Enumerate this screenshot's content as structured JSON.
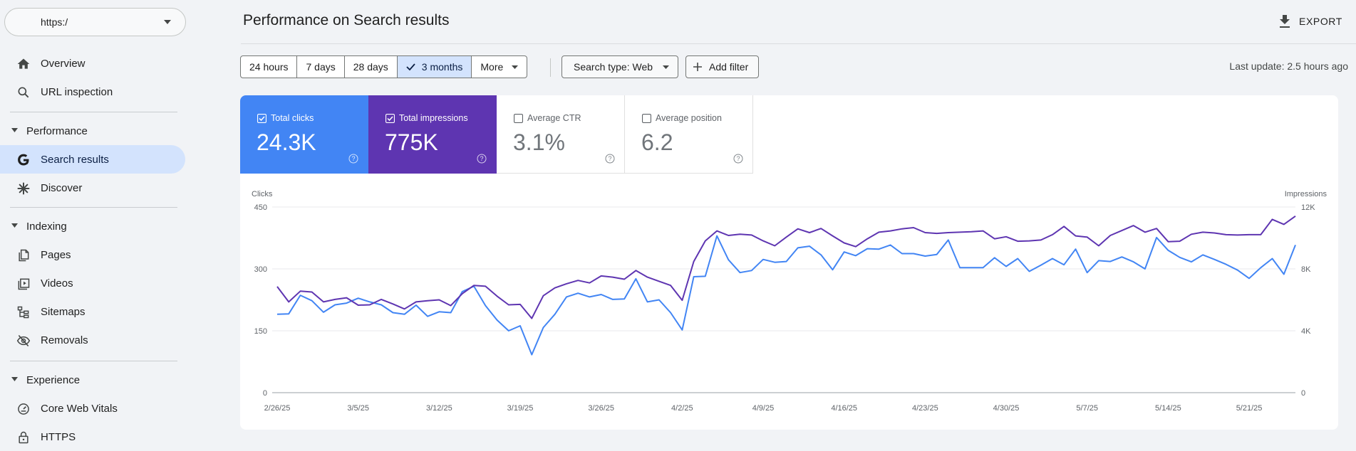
{
  "sidebar": {
    "property": "https:/",
    "items": {
      "overview": "Overview",
      "url_inspection": "URL inspection",
      "performance_header": "Performance",
      "search_results": "Search results",
      "discover": "Discover",
      "indexing_header": "Indexing",
      "pages": "Pages",
      "videos": "Videos",
      "sitemaps": "Sitemaps",
      "removals": "Removals",
      "experience_header": "Experience",
      "core_web_vitals": "Core Web Vitals",
      "https": "HTTPS"
    }
  },
  "header": {
    "title": "Performance on Search results",
    "export_label": "EXPORT"
  },
  "filters": {
    "ranges": [
      "24 hours",
      "7 days",
      "28 days",
      "3 months",
      "More"
    ],
    "selected_range": "3 months",
    "search_type": "Search type: Web",
    "add_filter": "Add filter",
    "last_update": "Last update: 2.5 hours ago"
  },
  "metrics": {
    "clicks": {
      "label": "Total clicks",
      "value": "24.3K",
      "checked": true,
      "color": "#4285f4"
    },
    "impressions": {
      "label": "Total impressions",
      "value": "775K",
      "checked": true,
      "color": "#5e35b1"
    },
    "ctr": {
      "label": "Average CTR",
      "value": "3.1%",
      "checked": false
    },
    "position": {
      "label": "Average position",
      "value": "6.2",
      "checked": false
    }
  },
  "chart_data": {
    "type": "line",
    "left_axis_label": "Clicks",
    "right_axis_label": "Impressions",
    "left_ticks": [
      "0",
      "150",
      "300",
      "450"
    ],
    "right_ticks": [
      "0",
      "4K",
      "8K",
      "12K"
    ],
    "left_ylim": [
      0,
      450
    ],
    "right_ylim": [
      0,
      12000
    ],
    "x_tick_labels": [
      "2/26/25",
      "3/5/25",
      "3/12/25",
      "3/19/25",
      "3/26/25",
      "4/2/25",
      "4/9/25",
      "4/16/25",
      "4/23/25",
      "4/30/25",
      "5/7/25",
      "5/14/25",
      "5/21/25"
    ],
    "grid": true,
    "series": [
      {
        "name": "Total clicks",
        "axis": "left",
        "color": "#4285f4",
        "values": [
          190,
          191,
          236,
          223,
          195,
          213,
          217,
          229,
          220,
          213,
          194,
          190,
          212,
          185,
          196,
          194,
          245,
          258,
          211,
          176,
          150,
          162,
          92,
          158,
          190,
          232,
          241,
          232,
          238,
          226,
          227,
          276,
          220,
          225,
          194,
          152,
          281,
          282,
          380,
          322,
          291,
          296,
          323,
          316,
          318,
          351,
          355,
          334,
          298,
          341,
          332,
          349,
          348,
          358,
          337,
          337,
          331,
          335,
          370,
          303,
          303,
          303,
          327,
          306,
          325,
          294,
          309,
          325,
          310,
          348,
          291,
          320,
          318,
          329,
          317,
          300,
          376,
          345,
          328,
          317,
          334,
          323,
          311,
          297,
          277,
          303,
          325,
          287,
          358
        ]
      },
      {
        "name": "Total impressions",
        "axis": "left",
        "color": "#5e35b1",
        "values": [
          257,
          220,
          246,
          244,
          220,
          226,
          230,
          212,
          213,
          226,
          215,
          203,
          220,
          223,
          225,
          211,
          240,
          260,
          258,
          234,
          213,
          214,
          180,
          235,
          254,
          264,
          272,
          266,
          283,
          280,
          275,
          296,
          280,
          270,
          260,
          224,
          318,
          368,
          392,
          381,
          384,
          382,
          368,
          356,
          377,
          397,
          388,
          398,
          380,
          363,
          354,
          373,
          389,
          392,
          397,
          400,
          388,
          386,
          388,
          389,
          390,
          392,
          373,
          378,
          367,
          368,
          370,
          383,
          403,
          380,
          377,
          356,
          381,
          393,
          405,
          389,
          398,
          366,
          367,
          384,
          389,
          387,
          383,
          382,
          383,
          383,
          420,
          408,
          428
        ]
      }
    ]
  }
}
